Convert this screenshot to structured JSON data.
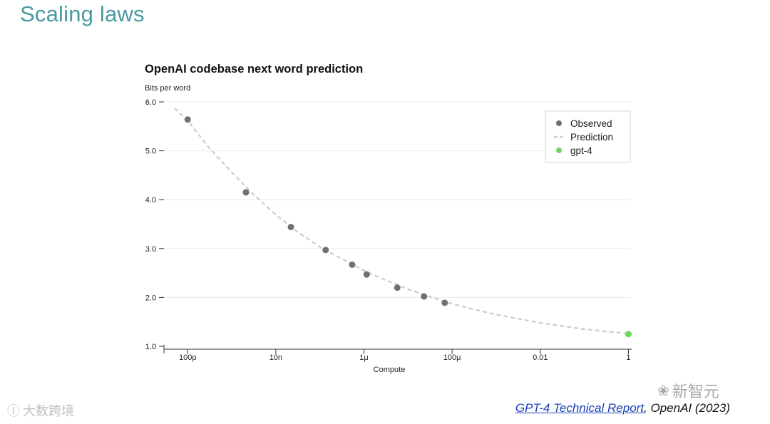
{
  "slide": {
    "title": "Scaling laws",
    "citation_link": "GPT-4 Technical Report",
    "citation_rest": ", OpenAI (2023)"
  },
  "watermarks": {
    "right_text": "新智元",
    "left_text": "大数跨境"
  },
  "colors": {
    "title": "#4a9aa0",
    "observed": "#707070",
    "prediction": "#cccccc",
    "gpt4": "#6fd660"
  },
  "chart_data": {
    "type": "scatter",
    "title": "OpenAI codebase next word prediction",
    "ylabel": "Bits per word",
    "xlabel": "Compute",
    "x_scale": "log",
    "xlim": [
      2.9e-11,
      1.1
    ],
    "ylim": [
      1.0,
      6.0
    ],
    "yticks": [
      1.0,
      2.0,
      3.0,
      4.0,
      5.0,
      6.0
    ],
    "ytick_labels": [
      "1.0",
      "2.0",
      "3.0",
      "4.0",
      "5.0",
      "6.0"
    ],
    "xticks": [
      1e-10,
      1e-08,
      1e-06,
      0.0001,
      0.01,
      1
    ],
    "xtick_labels": [
      "100p",
      "10n",
      "1μ",
      "100μ",
      "0.01",
      "1"
    ],
    "grid": "horizontal",
    "legend_position": "top-right",
    "legend": [
      "Observed",
      "Prediction",
      "gpt-4"
    ],
    "series": [
      {
        "name": "Observed",
        "style": "points",
        "x": [
          1e-10,
          2.1e-09,
          2.2e-08,
          1.35e-07,
          5.4e-07,
          1.15e-06,
          5.7e-06,
          2.3e-05,
          6.8e-05
        ],
        "y": [
          5.64,
          4.15,
          3.44,
          2.97,
          2.67,
          2.47,
          2.2,
          2.02,
          1.89
        ]
      },
      {
        "name": "Prediction",
        "style": "dashed-line",
        "x": [
          5e-11,
          1e-10,
          3e-10,
          1e-09,
          3e-09,
          1e-08,
          3e-08,
          1e-07,
          3e-07,
          1e-06,
          3e-06,
          1e-05,
          3e-05,
          0.0001,
          0.0003,
          0.001,
          0.01,
          0.1,
          1,
          1.2
        ],
        "y": [
          5.87,
          5.62,
          5.07,
          4.56,
          4.12,
          3.69,
          3.35,
          3.03,
          2.8,
          2.55,
          2.36,
          2.17,
          2.02,
          1.87,
          1.76,
          1.65,
          1.48,
          1.35,
          1.26,
          1.25
        ]
      },
      {
        "name": "gpt-4",
        "style": "points",
        "x": [
          1
        ],
        "y": [
          1.25
        ]
      }
    ]
  }
}
